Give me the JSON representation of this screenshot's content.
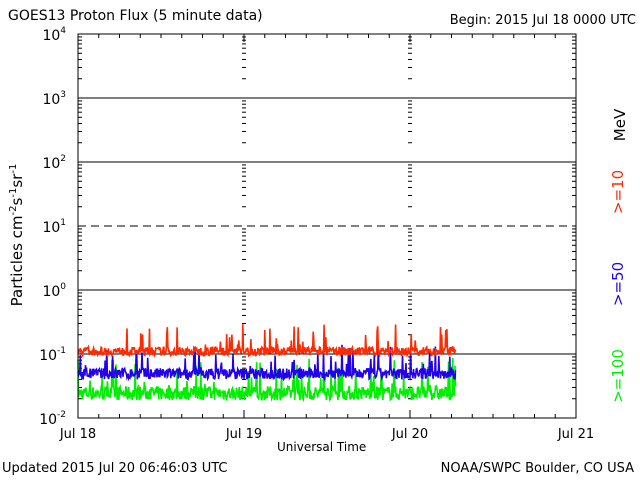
{
  "header": {
    "title": "GOES13 Proton Flux (5 minute data)",
    "begin": "Begin: 2015 Jul 18 0000 UTC"
  },
  "footer": {
    "updated": "Updated 2015 Jul 20 06:46:03 UTC",
    "credit": "NOAA/SWPC Boulder, CO USA"
  },
  "colors": {
    "ge10": "#ff2a00",
    "ge50": "#2200ee",
    "ge100": "#00ee00"
  },
  "chart_data": {
    "type": "line",
    "xlabel": "Universal Time",
    "ylabel": "Particles cm-2s-1sr-1",
    "yscale": "log",
    "ylim": [
      0.01,
      10000
    ],
    "yticks": [
      {
        "base": "10",
        "exp": "-2"
      },
      {
        "base": "10",
        "exp": "-1"
      },
      {
        "base": "10",
        "exp": "0"
      },
      {
        "base": "10",
        "exp": "1"
      },
      {
        "base": "10",
        "exp": "2"
      },
      {
        "base": "10",
        "exp": "3"
      },
      {
        "base": "10",
        "exp": "4"
      }
    ],
    "xticks": [
      "Jul 18",
      "Jul 19",
      "Jul 20",
      "Jul 21"
    ],
    "xlim_days": [
      0,
      3
    ],
    "data_end_day": 2.28,
    "right_labels": {
      "unit": "MeV",
      "ge10": ">=10",
      "ge50": ">=50",
      "ge100": ">=100"
    },
    "series": [
      {
        "name": ">=10",
        "color": "#ff2a00",
        "typical": 0.12,
        "low": 0.085,
        "high": 0.3
      },
      {
        "name": ">=50",
        "color": "#2200ee",
        "typical": 0.055,
        "low": 0.035,
        "high": 0.14
      },
      {
        "name": ">=100",
        "color": "#00ee00",
        "typical": 0.028,
        "low": 0.016,
        "high": 0.09
      }
    ]
  }
}
